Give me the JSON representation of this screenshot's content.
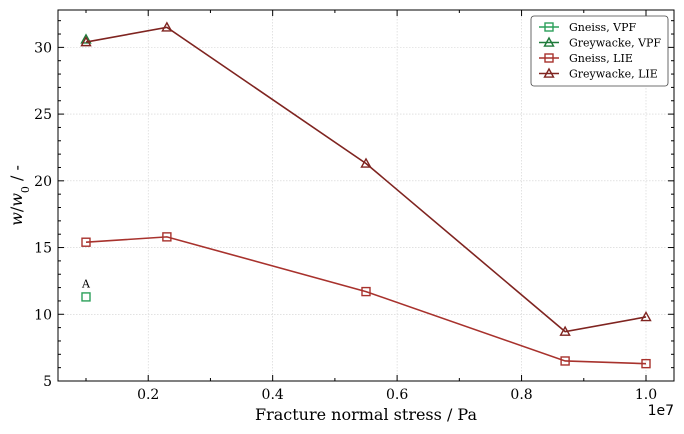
{
  "chart_data": {
    "type": "line",
    "title": "",
    "xlabel": "Fracture normal stress / Pa",
    "ylabel": "w / w0 / -",
    "x_offset_label": "1e7",
    "xlim": [
      550000,
      10450000
    ],
    "ylim": [
      5,
      32.8
    ],
    "xticks": [
      2000000,
      4000000,
      6000000,
      8000000,
      10000000
    ],
    "xtick_labels": [
      "0.2",
      "0.4",
      "0.6",
      "0.8",
      "1.0"
    ],
    "yticks": [
      5,
      10,
      15,
      20,
      25,
      30
    ],
    "ytick_labels": [
      "5",
      "10",
      "15",
      "20",
      "25",
      "30"
    ],
    "grid": true,
    "legend_position": "top-right",
    "series": [
      {
        "name": "Gneiss, VPF",
        "color": "#2ca05a",
        "marker": "square",
        "line": false,
        "x": [
          1000000
        ],
        "y": [
          11.3
        ]
      },
      {
        "name": "Greywacke, VPF",
        "color": "#1f7a3a",
        "marker": "triangle",
        "line": false,
        "x": [
          1000000
        ],
        "y": [
          30.6
        ]
      },
      {
        "name": "Gneiss, LIE",
        "color": "#a8322d",
        "marker": "square",
        "line": true,
        "x": [
          1000000,
          2300000,
          5500000,
          8700000,
          10000000
        ],
        "y": [
          15.4,
          15.8,
          11.7,
          6.5,
          6.3
        ]
      },
      {
        "name": "Greywacke, LIE",
        "color": "#7f2420",
        "marker": "triangle",
        "line": true,
        "x": [
          1000000,
          2300000,
          5500000,
          8700000,
          10000000
        ],
        "y": [
          30.4,
          31.5,
          21.3,
          8.7,
          9.8
        ]
      }
    ],
    "annotations": [
      {
        "text": "A",
        "x": 1000000,
        "y": 12.3
      }
    ]
  }
}
